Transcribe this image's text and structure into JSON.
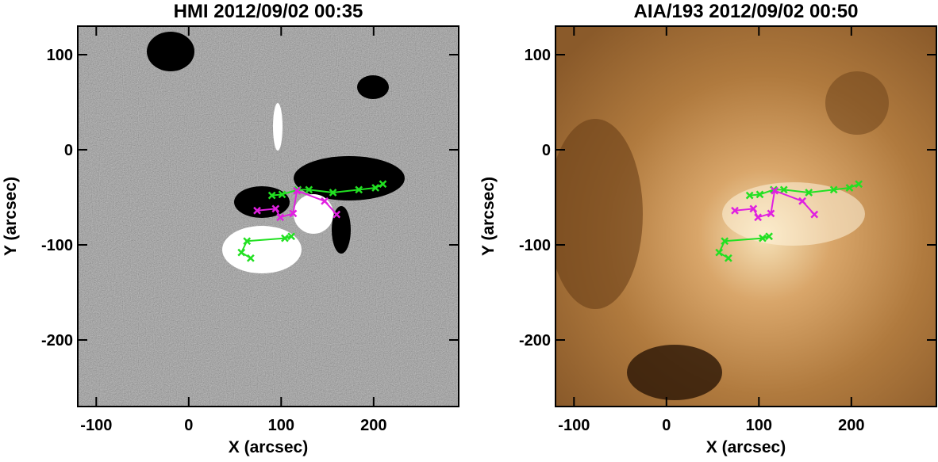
{
  "chart_data": [
    {
      "type": "line",
      "title": "HMI 2012/09/02 00:35",
      "image": "magnetogram",
      "xlabel": "X (arcsec)",
      "ylabel": "Y (arcsec)",
      "xlim": [
        -120,
        292
      ],
      "ylim": [
        -270,
        130
      ],
      "xticks": [
        -100,
        0,
        100,
        200
      ],
      "yticks": [
        -200,
        -100,
        0,
        100
      ],
      "marker": "x",
      "series": [
        {
          "color": "#22e022",
          "x": [
            90,
            101,
            118,
            130,
            156,
            184,
            202,
            210
          ],
          "values": [
            -48,
            -47,
            -42,
            -42,
            -45,
            -42,
            -40,
            -36
          ]
        },
        {
          "color": "#e020e0",
          "x": [
            74,
            94,
            99,
            113,
            117,
            147,
            160
          ],
          "values": [
            -64,
            -62,
            -71,
            -67,
            -43,
            -54,
            -68
          ]
        },
        {
          "color": "#22e022",
          "x": [
            111,
            104,
            63,
            57,
            67
          ],
          "values": [
            -91,
            -93,
            -96,
            -108,
            -114
          ]
        }
      ]
    },
    {
      "type": "line",
      "title": "AIA/193 2012/09/02 00:50",
      "image": "euv",
      "xlabel": "X (arcsec)",
      "ylabel": "Y (arcsec)",
      "xlim": [
        -120,
        292
      ],
      "ylim": [
        -270,
        130
      ],
      "xticks": [
        -100,
        0,
        100,
        200
      ],
      "yticks": [
        -200,
        -100,
        0,
        100
      ],
      "marker": "x",
      "series": [
        {
          "color": "#22e022",
          "x": [
            90,
            101,
            116,
            127,
            154,
            181,
            198,
            208
          ],
          "values": [
            -48,
            -47,
            -42,
            -42,
            -45,
            -42,
            -40,
            -36
          ]
        },
        {
          "color": "#e020e0",
          "x": [
            74,
            94,
            99,
            113,
            117,
            147,
            160
          ],
          "values": [
            -64,
            -62,
            -71,
            -67,
            -43,
            -54,
            -68
          ]
        },
        {
          "color": "#22e022",
          "x": [
            111,
            104,
            63,
            57,
            67
          ],
          "values": [
            -91,
            -93,
            -96,
            -108,
            -114
          ]
        }
      ]
    }
  ]
}
